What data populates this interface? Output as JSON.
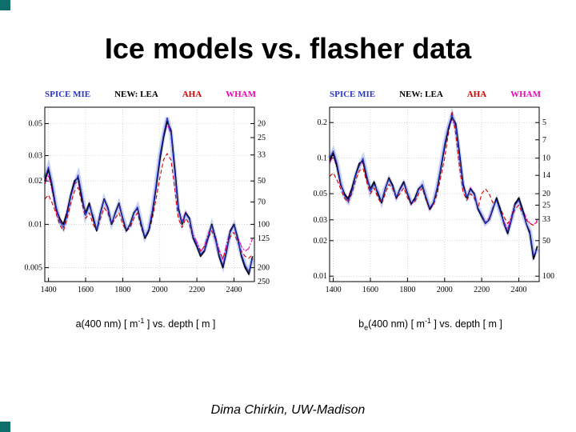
{
  "slide": {
    "title": "Ice models vs. flasher data",
    "footer": "Dima Chirkin, UW-Madison",
    "accent_color": "#0e6f6a"
  },
  "style": {
    "grid": "#bcbcbc",
    "band": "#9fb0ea",
    "frame": "#000000"
  },
  "chart_data": [
    {
      "type": "line",
      "title": "",
      "xlabel": "a(400 nm) [ m-1 ] vs. depth [ m ]",
      "xlabel_parts": [
        {
          "t": "a(400 nm) [ m"
        },
        {
          "t": "-1",
          "style": "sup"
        },
        {
          "t": " ] vs. depth [ m ]"
        }
      ],
      "ylabel": "",
      "ylog": true,
      "xlim": [
        1380,
        2510
      ],
      "ylim": [
        0.004,
        0.065
      ],
      "x_ticks": [
        1400,
        1600,
        1800,
        2000,
        2200,
        2400
      ],
      "y_ticks": [
        0.05,
        0.03,
        0.02,
        0.01,
        0.005
      ],
      "y_tick_labels": [
        "0.05",
        "0.03",
        "0.02",
        "0.01",
        "0.005"
      ],
      "right_axis_labels": [
        "20",
        "25",
        "33",
        "50",
        "70",
        "100",
        "125",
        "200",
        "250"
      ],
      "x": [
        1380,
        1400,
        1420,
        1440,
        1460,
        1480,
        1500,
        1520,
        1540,
        1560,
        1580,
        1600,
        1620,
        1640,
        1660,
        1680,
        1700,
        1720,
        1740,
        1760,
        1780,
        1800,
        1820,
        1840,
        1860,
        1880,
        1900,
        1920,
        1940,
        1960,
        1980,
        2000,
        2020,
        2040,
        2060,
        2080,
        2100,
        2120,
        2140,
        2160,
        2180,
        2200,
        2220,
        2240,
        2260,
        2280,
        2300,
        2320,
        2340,
        2360,
        2380,
        2400,
        2420,
        2440,
        2460,
        2480,
        2500
      ],
      "series": [
        {
          "name": "SPICE MIE",
          "color": "#2a35c8",
          "style": "solid",
          "width": 1.2,
          "band": true,
          "values": [
            0.021,
            0.025,
            0.019,
            0.0135,
            0.0105,
            0.0095,
            0.0115,
            0.0155,
            0.019,
            0.022,
            0.016,
            0.0115,
            0.0135,
            0.0115,
            0.0092,
            0.0118,
            0.0148,
            0.0128,
            0.0102,
            0.0118,
            0.0138,
            0.0112,
            0.0092,
            0.0098,
            0.0118,
            0.0132,
            0.0102,
            0.0082,
            0.0092,
            0.0125,
            0.019,
            0.03,
            0.042,
            0.055,
            0.043,
            0.023,
            0.0125,
            0.0102,
            0.0118,
            0.0108,
            0.0082,
            0.0072,
            0.0062,
            0.0066,
            0.0082,
            0.0098,
            0.0078,
            0.0062,
            0.0052,
            0.0066,
            0.0088,
            0.0098,
            0.0078,
            0.0062,
            0.0052,
            0.0047,
            0.0058
          ]
        },
        {
          "name": "NEW: LEA",
          "color": "#000000",
          "style": "solid",
          "width": 1.7,
          "band": false,
          "values": [
            0.02,
            0.024,
            0.018,
            0.013,
            0.011,
            0.01,
            0.012,
            0.016,
            0.02,
            0.021,
            0.015,
            0.012,
            0.014,
            0.011,
            0.009,
            0.012,
            0.015,
            0.013,
            0.01,
            0.012,
            0.014,
            0.011,
            0.009,
            0.01,
            0.012,
            0.013,
            0.01,
            0.008,
            0.009,
            0.012,
            0.018,
            0.028,
            0.04,
            0.052,
            0.045,
            0.025,
            0.013,
            0.01,
            0.012,
            0.011,
            0.008,
            0.007,
            0.006,
            0.0065,
            0.008,
            0.01,
            0.008,
            0.006,
            0.005,
            0.0065,
            0.009,
            0.01,
            0.008,
            0.006,
            0.005,
            0.0045,
            0.006
          ]
        },
        {
          "name": "AHA",
          "color": "#d40000",
          "style": "dashed",
          "width": 1.1,
          "band": false,
          "values": [
            0.015,
            0.016,
            0.014,
            0.012,
            0.01,
            0.009,
            0.011,
            0.014,
            0.017,
            0.018,
            0.014,
            0.011,
            0.012,
            0.01,
            0.009,
            0.011,
            0.013,
            0.012,
            0.01,
            0.011,
            0.012,
            0.01,
            0.009,
            0.0095,
            0.011,
            0.012,
            0.0095,
            0.008,
            0.0088,
            0.011,
            0.015,
            0.021,
            0.028,
            0.031,
            0.028,
            0.018,
            0.011,
            0.0095,
            0.011,
            0.01,
            0.008,
            0.0072,
            0.0065,
            0.007,
            0.008,
            0.009,
            0.0078,
            0.0065,
            0.0058,
            0.0068,
            0.0082,
            0.0088,
            0.0075,
            0.0065,
            0.006,
            0.0058,
            0.0062
          ]
        },
        {
          "name": "WHAM",
          "color": "#ee00bb",
          "style": "dashdot",
          "width": 1.1,
          "band": false,
          "values": [
            0.019,
            0.022,
            0.017,
            0.0125,
            0.0105,
            0.01,
            0.0125,
            0.016,
            0.019,
            0.02,
            0.0145,
            0.0118,
            0.0138,
            0.0108,
            0.0092,
            0.0122,
            0.015,
            0.0125,
            0.01,
            0.012,
            0.0135,
            0.0108,
            0.009,
            0.01,
            0.012,
            0.0128,
            0.0098,
            0.008,
            0.0092,
            0.0128,
            0.0185,
            0.0285,
            0.0395,
            0.05,
            0.042,
            0.0235,
            0.0128,
            0.0105,
            0.0122,
            0.0108,
            0.0085,
            0.0075,
            0.0065,
            0.007,
            0.0085,
            0.01,
            0.0082,
            0.0066,
            0.0057,
            0.0072,
            0.0092,
            0.0098,
            0.0082,
            0.007,
            0.0065,
            0.0068,
            0.008
          ]
        }
      ]
    },
    {
      "type": "line",
      "title": "",
      "xlabel": "be(400 nm) [ m-1 ] vs. depth [ m ]",
      "xlabel_parts": [
        {
          "t": "b"
        },
        {
          "t": "e",
          "style": "sub"
        },
        {
          "t": "(400 nm) [ m"
        },
        {
          "t": "-1",
          "style": "sup"
        },
        {
          "t": " ] vs. depth [ m ]"
        }
      ],
      "ylabel": "",
      "ylog": true,
      "xlim": [
        1380,
        2510
      ],
      "ylim": [
        0.009,
        0.27
      ],
      "x_ticks": [
        1400,
        1600,
        1800,
        2000,
        2200,
        2400
      ],
      "y_ticks": [
        0.2,
        0.1,
        0.05,
        0.03,
        0.02,
        0.01
      ],
      "y_tick_labels": [
        "0.2",
        "0.1",
        "0.05",
        "0.03",
        "0.02",
        "0.01"
      ],
      "right_axis_labels": [
        "5",
        "7",
        "10",
        "14",
        "20",
        "25",
        "33",
        "50",
        "100"
      ],
      "x": [
        1380,
        1400,
        1420,
        1440,
        1460,
        1480,
        1500,
        1520,
        1540,
        1560,
        1580,
        1600,
        1620,
        1640,
        1660,
        1680,
        1700,
        1720,
        1740,
        1760,
        1780,
        1800,
        1820,
        1840,
        1860,
        1880,
        1900,
        1920,
        1940,
        1960,
        1980,
        2000,
        2020,
        2040,
        2060,
        2080,
        2100,
        2120,
        2140,
        2160,
        2180,
        2200,
        2220,
        2240,
        2260,
        2280,
        2300,
        2320,
        2340,
        2360,
        2380,
        2400,
        2420,
        2440,
        2460,
        2480,
        2500
      ],
      "series": [
        {
          "name": "SPICE MIE",
          "color": "#2a35c8",
          "style": "solid",
          "width": 1.2,
          "band": true,
          "values": [
            0.1,
            0.115,
            0.09,
            0.062,
            0.048,
            0.043,
            0.052,
            0.07,
            0.086,
            0.1,
            0.072,
            0.052,
            0.06,
            0.052,
            0.043,
            0.056,
            0.066,
            0.057,
            0.047,
            0.054,
            0.061,
            0.051,
            0.042,
            0.044,
            0.054,
            0.06,
            0.047,
            0.038,
            0.042,
            0.057,
            0.086,
            0.132,
            0.183,
            0.232,
            0.185,
            0.103,
            0.057,
            0.047,
            0.054,
            0.049,
            0.038,
            0.033,
            0.028,
            0.03,
            0.038,
            0.044,
            0.035,
            0.028,
            0.024,
            0.03,
            0.04,
            0.044,
            0.035,
            0.028,
            0.024,
            0.015,
            0.017
          ]
        },
        {
          "name": "NEW: LEA",
          "color": "#000000",
          "style": "solid",
          "width": 1.7,
          "band": false,
          "values": [
            0.095,
            0.11,
            0.085,
            0.06,
            0.05,
            0.045,
            0.055,
            0.072,
            0.09,
            0.095,
            0.068,
            0.055,
            0.063,
            0.05,
            0.042,
            0.055,
            0.068,
            0.059,
            0.046,
            0.055,
            0.063,
            0.05,
            0.041,
            0.046,
            0.055,
            0.059,
            0.046,
            0.037,
            0.042,
            0.055,
            0.082,
            0.125,
            0.175,
            0.225,
            0.195,
            0.11,
            0.06,
            0.046,
            0.055,
            0.05,
            0.037,
            0.032,
            0.028,
            0.03,
            0.037,
            0.046,
            0.037,
            0.028,
            0.023,
            0.03,
            0.041,
            0.046,
            0.037,
            0.028,
            0.023,
            0.014,
            0.018
          ]
        },
        {
          "name": "AHA",
          "color": "#d40000",
          "style": "dashed",
          "width": 1.1,
          "band": false,
          "values": [
            0.07,
            0.075,
            0.065,
            0.055,
            0.046,
            0.042,
            0.05,
            0.065,
            0.078,
            0.082,
            0.063,
            0.05,
            0.056,
            0.046,
            0.041,
            0.05,
            0.06,
            0.055,
            0.046,
            0.05,
            0.056,
            0.046,
            0.041,
            0.043,
            0.05,
            0.056,
            0.044,
            0.037,
            0.04,
            0.05,
            0.07,
            0.1,
            0.16,
            0.25,
            0.16,
            0.085,
            0.052,
            0.044,
            0.05,
            0.046,
            0.038,
            0.05,
            0.055,
            0.05,
            0.042,
            0.044,
            0.038,
            0.032,
            0.028,
            0.031,
            0.037,
            0.04,
            0.034,
            0.03,
            0.028,
            0.027,
            0.029
          ]
        },
        {
          "name": "WHAM",
          "color": "#ee00bb",
          "style": "dashdot",
          "width": 1.1,
          "band": false,
          "values": [
            0.09,
            0.105,
            0.082,
            0.058,
            0.05,
            0.047,
            0.056,
            0.072,
            0.086,
            0.092,
            0.066,
            0.056,
            0.062,
            0.049,
            0.042,
            0.056,
            0.067,
            0.057,
            0.045,
            0.054,
            0.061,
            0.049,
            0.04,
            0.045,
            0.054,
            0.057,
            0.045,
            0.036,
            0.041,
            0.056,
            0.083,
            0.128,
            0.178,
            0.215,
            0.18,
            0.105,
            0.058,
            0.047,
            0.056,
            0.049,
            0.037,
            0.033,
            0.029,
            0.031,
            0.038,
            0.045,
            0.036,
            0.029,
            0.025,
            0.032,
            0.042,
            0.045,
            0.037,
            0.031,
            0.028,
            0.027,
            0.03
          ]
        }
      ]
    }
  ]
}
